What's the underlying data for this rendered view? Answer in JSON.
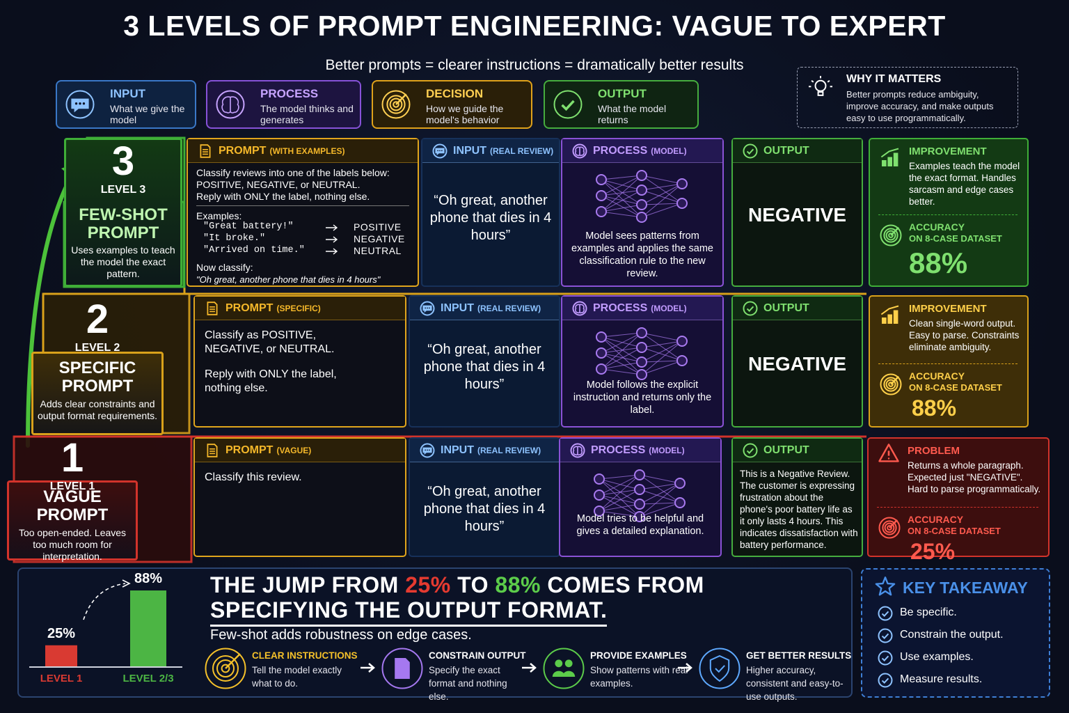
{
  "title": "3 LEVELS OF PROMPT ENGINEERING: VAGUE TO EXPERT",
  "subtitle": "Better prompts = clearer instructions = dramatically better results",
  "legend": [
    {
      "title": "INPUT",
      "text": "What we give the model"
    },
    {
      "title": "PROCESS",
      "text": "The model thinks and generates"
    },
    {
      "title": "DECISION",
      "text": "How we guide the model's behavior"
    },
    {
      "title": "OUTPUT",
      "text": "What the model returns"
    }
  ],
  "why": {
    "title": "WHY IT MATTERS",
    "text": "Better prompts reduce ambiguity, improve accuracy, and make outputs easy to use programmatically."
  },
  "levels": [
    {
      "number": "3",
      "level": "LEVEL 3",
      "name": "FEW-SHOT PROMPT",
      "desc": "Uses examples to teach the model the exact pattern.",
      "prompt": {
        "title": "PROMPT",
        "tag": "(WITH EXAMPLES)",
        "lines": [
          "Classify reviews into one of the labels below:",
          "POSITIVE, NEGATIVE, or NEUTRAL.",
          "Reply with ONLY the label, nothing else."
        ],
        "examples_label": "Examples:",
        "examples": [
          {
            "text": "\"Great battery!\"",
            "label": "POSITIVE"
          },
          {
            "text": "\"It broke.\"",
            "label": "NEGATIVE"
          },
          {
            "text": "\"Arrived on time.\"",
            "label": "NEUTRAL"
          }
        ],
        "outro": "Now classify:",
        "quote": "\"Oh great, another phone that dies in 4 hours\""
      },
      "input": {
        "title": "INPUT",
        "tag": "(REAL REVIEW)",
        "text": "“Oh great, another phone that dies in 4 hours”"
      },
      "process": {
        "title": "PROCESS",
        "tag": "(MODEL)",
        "text": "Model sees patterns from examples and applies the same classification rule to the new review."
      },
      "output": {
        "title": "OUTPUT",
        "text": "NEGATIVE"
      },
      "note": {
        "title": "IMPROVEMENT",
        "text": "Examples teach the model the exact format. Handles sarcasm and edge cases better."
      },
      "accuracy": {
        "title": "ACCURACY",
        "subtitle": "ON 8-CASE DATASET",
        "value": "88%"
      }
    },
    {
      "number": "2",
      "level": "LEVEL 2",
      "name": "SPECIFIC PROMPT",
      "desc": "Adds clear constraints and output format requirements.",
      "prompt": {
        "title": "PROMPT",
        "tag": "(SPECIFIC)",
        "lines": [
          "Classify as POSITIVE, NEGATIVE, or NEUTRAL.",
          "Reply with ONLY the label, nothing else."
        ]
      },
      "input": {
        "title": "INPUT",
        "tag": "(REAL REVIEW)",
        "text": "“Oh great, another phone that dies in 4 hours”"
      },
      "process": {
        "title": "PROCESS",
        "tag": "(MODEL)",
        "text": "Model follows the explicit instruction and returns only the label."
      },
      "output": {
        "title": "OUTPUT",
        "text": "NEGATIVE"
      },
      "note": {
        "title": "IMPROVEMENT",
        "text": "Clean single-word output. Easy to parse. Constraints eliminate ambiguity."
      },
      "accuracy": {
        "title": "ACCURACY",
        "subtitle": "ON 8-CASE DATASET",
        "value": "88%"
      }
    },
    {
      "number": "1",
      "level": "LEVEL 1",
      "name": "VAGUE PROMPT",
      "desc": "Too open-ended. Leaves too much room for interpretation.",
      "prompt": {
        "title": "PROMPT",
        "tag": "(VAGUE)",
        "lines": [
          "Classify this review."
        ]
      },
      "input": {
        "title": "INPUT",
        "tag": "(REAL REVIEW)",
        "text": "“Oh great, another phone that dies in 4 hours”"
      },
      "process": {
        "title": "PROCESS",
        "tag": "(MODEL)",
        "text": "Model tries to be helpful and gives a detailed explanation."
      },
      "output": {
        "title": "OUTPUT",
        "text": "This is a Negative Review. The customer is expressing frustration about the phone's poor battery life as it only lasts 4 hours. This indicates dissatisfaction with battery performance."
      },
      "note": {
        "title": "PROBLEM",
        "text": "Returns a whole paragraph. Expected just \"NEGATIVE\". Hard to parse programmatically."
      },
      "accuracy": {
        "title": "ACCURACY",
        "subtitle": "ON 8-CASE DATASET",
        "value": "25%"
      }
    }
  ],
  "jump_chart": {
    "type": "bar",
    "categories": [
      "LEVEL 1",
      "LEVEL 2/3"
    ],
    "values": [
      25,
      88
    ],
    "value_labels": [
      "25%",
      "88%"
    ],
    "colors": [
      "#d93a32",
      "#4cb544"
    ],
    "ylim": [
      0,
      100
    ]
  },
  "jump": {
    "heading": [
      "THE JUMP FROM ",
      "25%",
      " TO ",
      "88%",
      " COMES FROM"
    ],
    "heading2": "SPECIFYING THE OUTPUT FORMAT.",
    "sub": "Few-shot adds robustness on edge cases.",
    "steps": [
      {
        "title": "CLEAR INSTRUCTIONS",
        "text": "Tell the model exactly what to do."
      },
      {
        "title": "CONSTRAIN OUTPUT",
        "text": "Specify the exact format and nothing else."
      },
      {
        "title": "PROVIDE EXAMPLES",
        "text": "Show patterns with real examples."
      },
      {
        "title": "GET BETTER RESULTS",
        "text": "Higher accuracy, consistent and easy-to-use outputs."
      }
    ]
  },
  "takeaway": {
    "title": "KEY TAKEAWAY",
    "items": [
      "Be specific.",
      "Constrain the output.",
      "Use examples.",
      "Measure results."
    ]
  }
}
